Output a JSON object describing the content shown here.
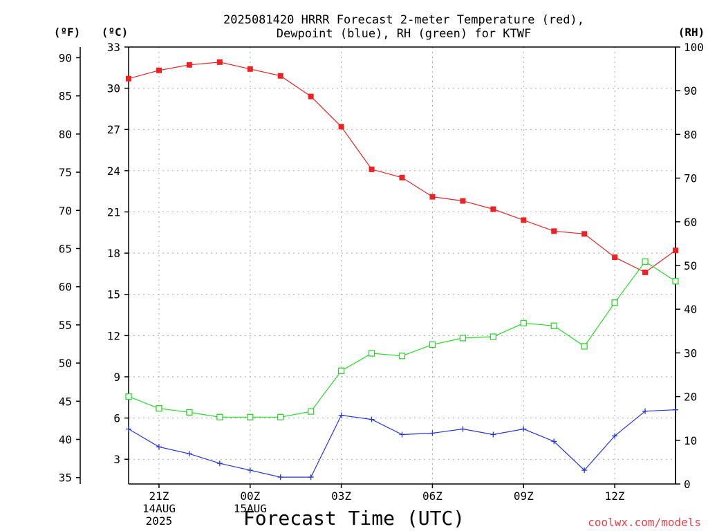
{
  "chart_data": {
    "type": "line",
    "title_lines": [
      "2025081420 HRRR Forecast 2-meter Temperature (red),",
      "Dewpoint (blue), RH (green) for KTWF"
    ],
    "xlabel": "Forecast Time (UTC)",
    "credit": "coolwx.com/models",
    "units": {
      "fahrenheit": "(ºF)",
      "celsius": "(ºC)",
      "rh": "(RH)"
    },
    "x_hours_since_20Z": {
      "min": 0,
      "max": 18
    },
    "x_ticks": [
      {
        "hour": 1,
        "lines": [
          "21Z",
          "14AUG",
          "2025"
        ]
      },
      {
        "hour": 4,
        "lines": [
          "00Z",
          "15AUG"
        ]
      },
      {
        "hour": 7,
        "lines": [
          "03Z"
        ]
      },
      {
        "hour": 10,
        "lines": [
          "06Z"
        ]
      },
      {
        "hour": 13,
        "lines": [
          "09Z"
        ]
      },
      {
        "hour": 16,
        "lines": [
          "12Z"
        ]
      }
    ],
    "celsius_axis": {
      "min": 1.2,
      "max": 33,
      "ticks": [
        3,
        6,
        9,
        12,
        15,
        18,
        21,
        24,
        27,
        30,
        33
      ]
    },
    "fahrenheit_ticks": [
      35,
      40,
      45,
      50,
      55,
      60,
      65,
      70,
      75,
      80,
      85,
      90
    ],
    "rh_axis": {
      "min": 0,
      "max": 100,
      "ticks": [
        0,
        10,
        20,
        30,
        40,
        50,
        60,
        70,
        80,
        90,
        100
      ]
    },
    "grid": true,
    "series": [
      {
        "name": "Temperature",
        "color": "#ee2222",
        "marker": "filled-square",
        "axis": "celsius",
        "x": [
          0,
          1,
          2,
          3,
          4,
          5,
          6,
          7,
          8,
          9,
          10,
          11,
          12,
          13,
          14,
          15,
          16,
          17,
          18
        ],
        "values": [
          30.7,
          31.3,
          31.7,
          31.9,
          31.4,
          30.9,
          29.4,
          27.2,
          24.1,
          23.5,
          22.1,
          21.8,
          21.2,
          20.4,
          19.6,
          19.4,
          17.7,
          16.6,
          18.2
        ]
      },
      {
        "name": "Dewpoint",
        "color": "#2233ee",
        "marker": "plus",
        "axis": "celsius",
        "x": [
          0,
          1,
          2,
          3,
          4,
          5,
          6,
          7,
          8,
          9,
          10,
          11,
          12,
          13,
          14,
          15,
          16,
          17,
          18
        ],
        "values": [
          5.2,
          3.9,
          3.4,
          2.7,
          2.2,
          1.7,
          1.7,
          6.2,
          5.9,
          4.8,
          4.9,
          5.2,
          4.8,
          5.2,
          4.3,
          2.2,
          4.7,
          6.5,
          6.6
        ]
      },
      {
        "name": "RH",
        "color": "#22dd22",
        "marker": "open-square",
        "axis": "rh",
        "x": [
          0,
          1,
          2,
          3,
          4,
          5,
          6,
          7,
          8,
          9,
          10,
          11,
          12,
          13,
          14,
          15,
          16,
          17,
          18
        ],
        "values": [
          20,
          17.3,
          16.4,
          15.3,
          15.3,
          15.3,
          16.6,
          25.9,
          29.9,
          29.3,
          31.9,
          33.4,
          33.7,
          36.8,
          36.2,
          31.5,
          41.5,
          50.9,
          46.4
        ]
      }
    ]
  }
}
